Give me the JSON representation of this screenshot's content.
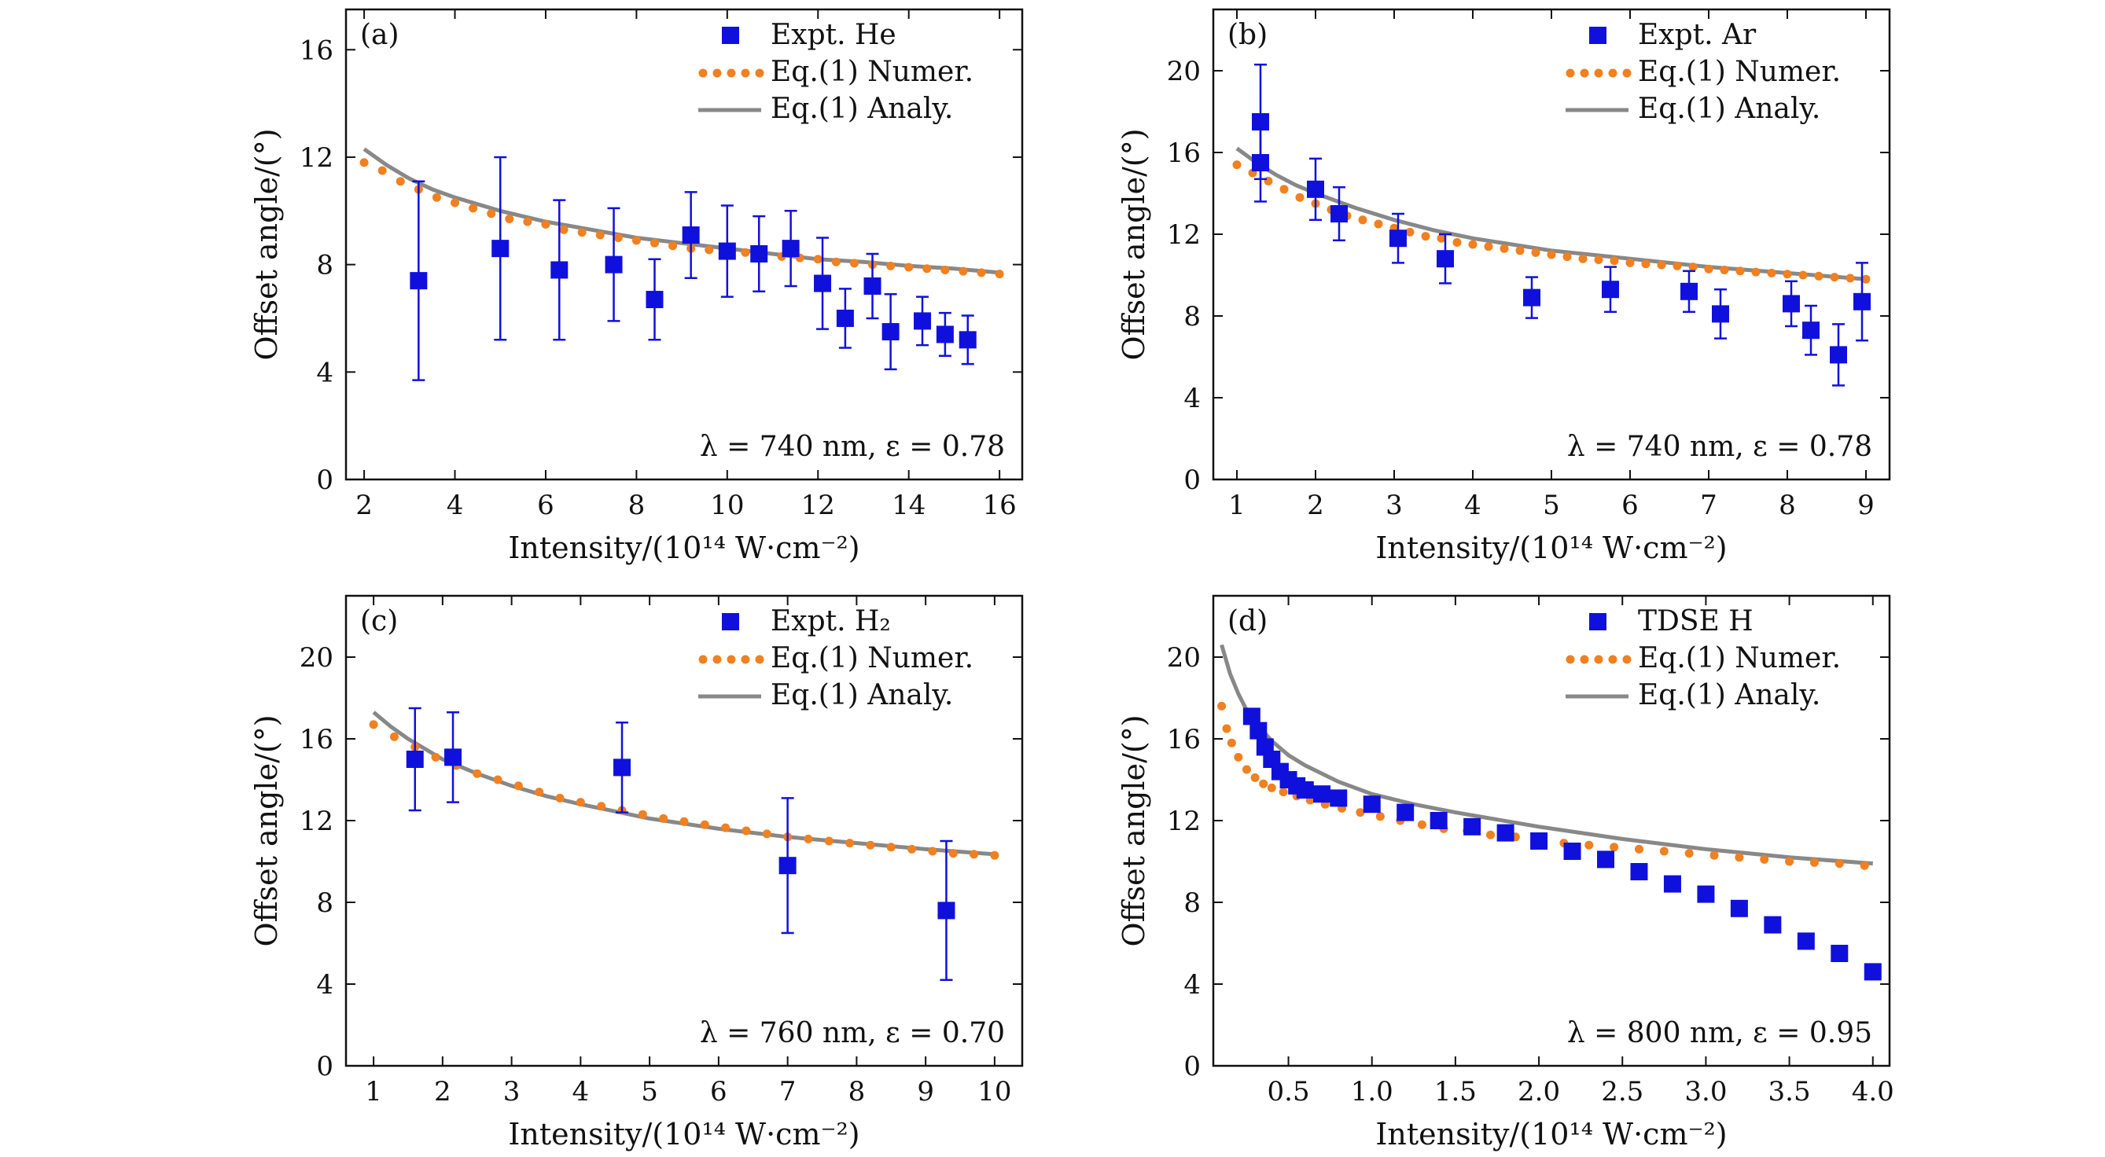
{
  "colors": {
    "expt": "#1010dd",
    "numer": "#f08020",
    "analy": "#888888",
    "axis": "#111111"
  },
  "panels": [
    {
      "label": "(a)",
      "annotation": "λ = 740 nm, ε = 0.78",
      "xlabel": "Intensity/(10¹⁴ W·cm⁻²)",
      "ylabel": "Offset angle/(°)",
      "legend": [
        "Expt. He",
        "Eq.(1) Numer.",
        "Eq.(1) Analy."
      ],
      "xlim": [
        1.6,
        16.5
      ],
      "ylim": [
        0,
        17.5
      ],
      "xticks": [
        2,
        4,
        6,
        8,
        10,
        12,
        14,
        16
      ],
      "xticklabels": [
        "2",
        "4",
        "6",
        "8",
        "10",
        "12",
        "14",
        "16"
      ],
      "yticks": [
        0,
        4,
        8,
        12,
        16
      ],
      "yticklabels": [
        "0",
        "4",
        "8",
        "12",
        "16"
      ]
    },
    {
      "label": "(b)",
      "annotation": "λ = 740 nm, ε = 0.78",
      "xlabel": "Intensity/(10¹⁴ W·cm⁻²)",
      "ylabel": "Offset angle/(°)",
      "legend": [
        "Expt. Ar",
        "Eq.(1) Numer.",
        "Eq.(1) Analy."
      ],
      "xlim": [
        0.7,
        9.3
      ],
      "ylim": [
        0,
        23
      ],
      "xticks": [
        1,
        2,
        3,
        4,
        5,
        6,
        7,
        8,
        9
      ],
      "xticklabels": [
        "1",
        "2",
        "3",
        "4",
        "5",
        "6",
        "7",
        "8",
        "9"
      ],
      "yticks": [
        0,
        4,
        8,
        12,
        16,
        20
      ],
      "yticklabels": [
        "0",
        "4",
        "8",
        "12",
        "16",
        "20"
      ]
    },
    {
      "label": "(c)",
      "annotation": "λ = 760 nm, ε = 0.70",
      "xlabel": "Intensity/(10¹⁴ W·cm⁻²)",
      "ylabel": "Offset angle/(°)",
      "legend": [
        "Expt. H₂",
        "Eq.(1) Numer.",
        "Eq.(1) Analy."
      ],
      "xlim": [
        0.6,
        10.4
      ],
      "ylim": [
        0,
        23
      ],
      "xticks": [
        1,
        2,
        3,
        4,
        5,
        6,
        7,
        8,
        9,
        10
      ],
      "xticklabels": [
        "1",
        "2",
        "3",
        "4",
        "5",
        "6",
        "7",
        "8",
        "9",
        "10"
      ],
      "yticks": [
        0,
        4,
        8,
        12,
        16,
        20
      ],
      "yticklabels": [
        "0",
        "4",
        "8",
        "12",
        "16",
        "20"
      ]
    },
    {
      "label": "(d)",
      "annotation": "λ = 800 nm, ε = 0.95",
      "xlabel": "Intensity/(10¹⁴ W·cm⁻²)",
      "ylabel": "Offset angle/(°)",
      "legend": [
        "TDSE H",
        "Eq.(1) Numer.",
        "Eq.(1) Analy."
      ],
      "xlim": [
        0.05,
        4.1
      ],
      "ylim": [
        0,
        23
      ],
      "xticks": [
        0.5,
        1.0,
        1.5,
        2.0,
        2.5,
        3.0,
        3.5,
        4.0
      ],
      "xticklabels": [
        "0.5",
        "1.0",
        "1.5",
        "2.0",
        "2.5",
        "3.0",
        "3.5",
        "4.0"
      ],
      "yticks": [
        0,
        4,
        8,
        12,
        16,
        20
      ],
      "yticklabels": [
        "0",
        "4",
        "8",
        "12",
        "16",
        "20"
      ]
    }
  ],
  "chart_data": [
    {
      "type": "scatter",
      "title": "(a)",
      "xlabel": "Intensity/(10¹⁴ W·cm⁻²)",
      "ylabel": "Offset angle/(°)",
      "xlim": [
        1.6,
        16.5
      ],
      "ylim": [
        0,
        17.5
      ],
      "series": [
        {
          "name": "Expt. He",
          "style": "square-errorbar",
          "x": [
            3.2,
            5.0,
            6.3,
            7.5,
            8.4,
            9.2,
            10.0,
            10.7,
            11.4,
            12.1,
            12.6,
            13.2,
            13.6,
            14.3,
            14.8,
            15.3
          ],
          "y": [
            7.4,
            8.6,
            7.8,
            8.0,
            6.7,
            9.1,
            8.5,
            8.4,
            8.6,
            7.3,
            6.0,
            7.2,
            5.5,
            5.9,
            5.4,
            5.2
          ],
          "yerr": [
            3.7,
            3.4,
            2.6,
            2.1,
            1.5,
            1.6,
            1.7,
            1.4,
            1.4,
            1.7,
            1.1,
            1.2,
            1.4,
            0.9,
            0.8,
            0.9
          ]
        },
        {
          "name": "Eq.(1) Numer.",
          "style": "dotted",
          "x": [
            2.0,
            2.4,
            2.8,
            3.2,
            3.6,
            4.0,
            4.4,
            4.8,
            5.2,
            5.6,
            6.0,
            6.4,
            6.8,
            7.2,
            7.6,
            8.0,
            8.4,
            8.8,
            9.2,
            9.6,
            10.0,
            10.4,
            10.8,
            11.2,
            11.6,
            12.0,
            12.4,
            12.8,
            13.2,
            13.6,
            14.0,
            14.4,
            14.8,
            15.2,
            15.6,
            16.0
          ],
          "y": [
            11.8,
            11.5,
            11.1,
            10.8,
            10.5,
            10.3,
            10.1,
            9.9,
            9.7,
            9.6,
            9.5,
            9.3,
            9.2,
            9.1,
            9.0,
            8.9,
            8.8,
            8.7,
            8.6,
            8.55,
            8.5,
            8.45,
            8.4,
            8.3,
            8.25,
            8.2,
            8.1,
            8.05,
            8.0,
            7.95,
            7.9,
            7.85,
            7.8,
            7.75,
            7.7,
            7.65
          ]
        },
        {
          "name": "Eq.(1) Analy.",
          "style": "solid",
          "x": [
            2.0,
            2.5,
            3.0,
            3.5,
            4.0,
            5.0,
            6.0,
            7.0,
            8.0,
            9.0,
            10.0,
            11.0,
            12.0,
            13.0,
            14.0,
            15.0,
            16.0
          ],
          "y": [
            12.3,
            11.7,
            11.2,
            10.8,
            10.5,
            10.0,
            9.6,
            9.3,
            9.0,
            8.8,
            8.6,
            8.4,
            8.2,
            8.1,
            7.95,
            7.85,
            7.7
          ]
        }
      ]
    },
    {
      "type": "scatter",
      "title": "(b)",
      "xlabel": "Intensity/(10¹⁴ W·cm⁻²)",
      "ylabel": "Offset angle/(°)",
      "xlim": [
        0.7,
        9.3
      ],
      "ylim": [
        0,
        23
      ],
      "series": [
        {
          "name": "Expt. Ar",
          "style": "square-errorbar",
          "x": [
            1.3,
            1.3,
            2.0,
            2.3,
            3.05,
            3.65,
            4.75,
            5.75,
            6.75,
            7.15,
            8.05,
            8.3,
            8.65,
            8.95
          ],
          "y": [
            17.5,
            15.5,
            14.2,
            13.0,
            11.8,
            10.8,
            8.9,
            9.3,
            9.2,
            8.1,
            8.6,
            7.3,
            6.1,
            8.7
          ],
          "yerr": [
            2.8,
            1.9,
            1.5,
            1.3,
            1.2,
            1.2,
            1.0,
            1.1,
            1.0,
            1.2,
            1.1,
            1.2,
            1.5,
            1.9
          ]
        },
        {
          "name": "Eq.(1) Numer.",
          "style": "dotted",
          "x": [
            1.0,
            1.2,
            1.4,
            1.6,
            1.8,
            2.0,
            2.2,
            2.4,
            2.6,
            2.8,
            3.0,
            3.2,
            3.4,
            3.6,
            3.8,
            4.0,
            4.2,
            4.4,
            4.6,
            4.8,
            5.0,
            5.2,
            5.4,
            5.6,
            5.8,
            6.0,
            6.2,
            6.4,
            6.6,
            6.8,
            7.0,
            7.2,
            7.4,
            7.6,
            7.8,
            8.0,
            8.2,
            8.4,
            8.6,
            8.8,
            9.0
          ],
          "y": [
            15.4,
            15.0,
            14.6,
            14.2,
            13.8,
            13.5,
            13.2,
            12.9,
            12.7,
            12.5,
            12.3,
            12.1,
            11.9,
            11.8,
            11.6,
            11.5,
            11.4,
            11.3,
            11.2,
            11.1,
            11.0,
            10.9,
            10.8,
            10.75,
            10.7,
            10.6,
            10.55,
            10.5,
            10.45,
            10.4,
            10.3,
            10.25,
            10.2,
            10.15,
            10.1,
            10.05,
            10.0,
            9.95,
            9.9,
            9.85,
            9.8
          ]
        },
        {
          "name": "Eq.(1) Analy.",
          "style": "solid",
          "x": [
            1.0,
            1.25,
            1.5,
            1.75,
            2.0,
            2.5,
            3.0,
            3.5,
            4.0,
            5.0,
            6.0,
            7.0,
            8.0,
            9.0
          ],
          "y": [
            16.2,
            15.5,
            14.9,
            14.4,
            14.0,
            13.3,
            12.7,
            12.2,
            11.8,
            11.2,
            10.8,
            10.4,
            10.1,
            9.8
          ]
        }
      ]
    },
    {
      "type": "scatter",
      "title": "(c)",
      "xlabel": "Intensity/(10¹⁴ W·cm⁻²)",
      "ylabel": "Offset angle/(°)",
      "xlim": [
        0.6,
        10.4
      ],
      "ylim": [
        0,
        23
      ],
      "series": [
        {
          "name": "Expt. H₂",
          "style": "square-errorbar",
          "x": [
            1.6,
            2.15,
            4.6,
            7.0,
            9.3
          ],
          "y": [
            15.0,
            15.1,
            14.6,
            9.8,
            7.6
          ],
          "yerr": [
            2.5,
            2.2,
            2.2,
            3.3,
            3.4
          ]
        },
        {
          "name": "Eq.(1) Numer.",
          "style": "dotted",
          "x": [
            1.0,
            1.3,
            1.6,
            1.9,
            2.2,
            2.5,
            2.8,
            3.1,
            3.4,
            3.7,
            4.0,
            4.3,
            4.6,
            4.9,
            5.2,
            5.5,
            5.8,
            6.1,
            6.4,
            6.7,
            7.0,
            7.3,
            7.6,
            7.9,
            8.2,
            8.5,
            8.8,
            9.1,
            9.4,
            9.7,
            10.0
          ],
          "y": [
            16.7,
            16.1,
            15.6,
            15.1,
            14.7,
            14.3,
            14.0,
            13.7,
            13.4,
            13.1,
            12.9,
            12.7,
            12.5,
            12.3,
            12.1,
            11.95,
            11.8,
            11.65,
            11.5,
            11.35,
            11.2,
            11.1,
            11.0,
            10.9,
            10.8,
            10.7,
            10.6,
            10.5,
            10.4,
            10.35,
            10.3
          ]
        },
        {
          "name": "Eq.(1) Analy.",
          "style": "solid",
          "x": [
            1.0,
            1.25,
            1.5,
            1.75,
            2.0,
            2.5,
            3.0,
            3.5,
            4.0,
            5.0,
            6.0,
            7.0,
            8.0,
            9.0,
            10.0
          ],
          "y": [
            17.3,
            16.6,
            16.0,
            15.5,
            15.0,
            14.3,
            13.7,
            13.2,
            12.8,
            12.1,
            11.6,
            11.2,
            10.9,
            10.6,
            10.35
          ]
        }
      ]
    },
    {
      "type": "scatter",
      "title": "(d)",
      "xlabel": "Intensity/(10¹⁴ W·cm⁻²)",
      "ylabel": "Offset angle/(°)",
      "xlim": [
        0.05,
        4.1
      ],
      "ylim": [
        0,
        23
      ],
      "series": [
        {
          "name": "TDSE H",
          "style": "square",
          "x": [
            0.28,
            0.32,
            0.36,
            0.4,
            0.45,
            0.5,
            0.55,
            0.6,
            0.7,
            0.8,
            1.0,
            1.2,
            1.4,
            1.6,
            1.8,
            2.0,
            2.2,
            2.4,
            2.6,
            2.8,
            3.0,
            3.2,
            3.4,
            3.6,
            3.8,
            4.0
          ],
          "y": [
            17.1,
            16.4,
            15.6,
            15.0,
            14.4,
            14.0,
            13.7,
            13.5,
            13.3,
            13.1,
            12.8,
            12.4,
            12.0,
            11.7,
            11.4,
            11.0,
            10.5,
            10.1,
            9.5,
            8.9,
            8.4,
            7.7,
            6.9,
            6.1,
            5.5,
            4.6
          ]
        },
        {
          "name": "Eq.(1) Numer.",
          "style": "dotted",
          "x": [
            0.1,
            0.13,
            0.16,
            0.2,
            0.25,
            0.3,
            0.35,
            0.4,
            0.47,
            0.55,
            0.63,
            0.72,
            0.82,
            0.93,
            1.05,
            1.17,
            1.3,
            1.43,
            1.57,
            1.71,
            1.86,
            2.0,
            2.15,
            2.3,
            2.45,
            2.6,
            2.75,
            2.9,
            3.05,
            3.2,
            3.35,
            3.5,
            3.65,
            3.8,
            3.95
          ],
          "y": [
            17.6,
            16.5,
            15.8,
            15.1,
            14.5,
            14.1,
            13.8,
            13.6,
            13.4,
            13.2,
            13.0,
            12.8,
            12.6,
            12.4,
            12.2,
            12.0,
            11.8,
            11.6,
            11.5,
            11.3,
            11.2,
            11.0,
            10.9,
            10.8,
            10.7,
            10.6,
            10.5,
            10.4,
            10.3,
            10.2,
            10.1,
            10.0,
            9.95,
            9.9,
            9.8
          ]
        },
        {
          "name": "Eq.(1) Analy.",
          "style": "solid",
          "x": [
            0.1,
            0.15,
            0.2,
            0.25,
            0.3,
            0.4,
            0.5,
            0.6,
            0.8,
            1.0,
            1.25,
            1.5,
            2.0,
            2.5,
            3.0,
            3.5,
            4.0
          ],
          "y": [
            20.6,
            19.2,
            18.2,
            17.4,
            16.8,
            15.9,
            15.2,
            14.7,
            13.9,
            13.3,
            12.8,
            12.4,
            11.7,
            11.1,
            10.6,
            10.2,
            9.9
          ]
        }
      ]
    }
  ]
}
